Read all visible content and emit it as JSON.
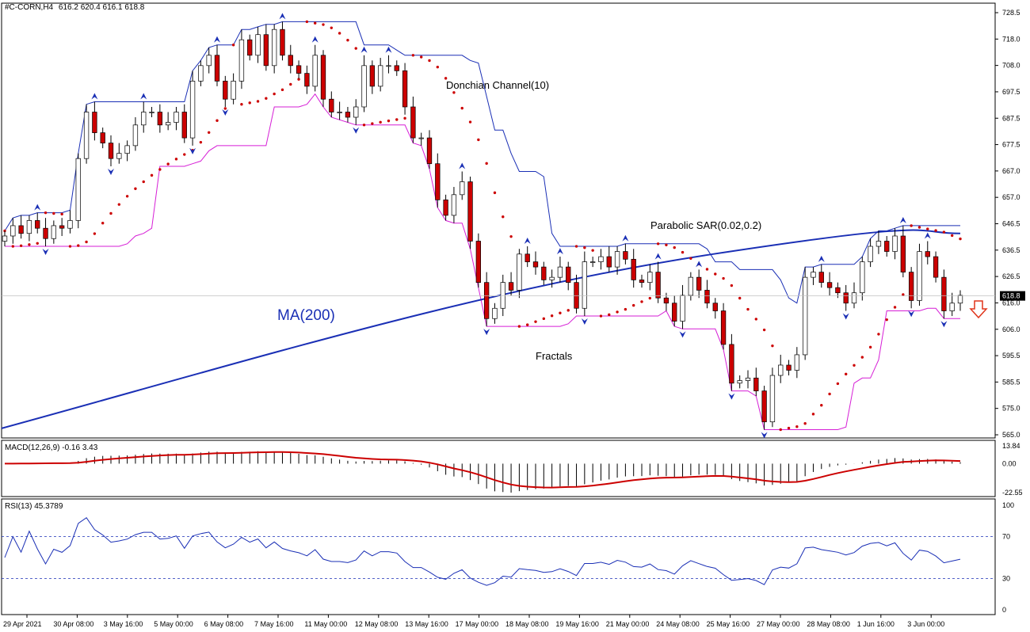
{
  "header": {
    "symbol": "#C-CORN,H4",
    "ohlc": "616.2 620.4 616.1 618.8"
  },
  "annotations": {
    "donchian": "Donchian Channel(10)",
    "parabolic": "Parabolic SAR(0.02,0.2)",
    "ma": "MA(200)",
    "fractals": "Fractals"
  },
  "current_price": "618.8",
  "signal_arrow": "down-arrow-icon",
  "price_ticks": [
    "728.5",
    "718.0",
    "708.0",
    "697.5",
    "687.5",
    "677.5",
    "667.0",
    "657.0",
    "646.5",
    "636.5",
    "626.5",
    "616.0",
    "606.0",
    "595.5",
    "585.5",
    "575.0",
    "565.0"
  ],
  "x_ticks": [
    "29 Apr 2021",
    "30 Apr 08:00",
    "3 May 16:00",
    "5 May 00:00",
    "6 May 08:00",
    "7 May 16:00",
    "11 May 00:00",
    "12 May 08:00",
    "13 May 16:00",
    "17 May 00:00",
    "18 May 08:00",
    "19 May 16:00",
    "21 May 00:00",
    "24 May 08:00",
    "25 May 16:00",
    "27 May 00:00",
    "28 May 08:00",
    "1 Jun 16:00",
    "3 Jun 00:00"
  ],
  "macd": {
    "label": "MACD(12,26,9) -0.16 3.43",
    "ticks": [
      "13.84",
      "0.00",
      "-22.55"
    ]
  },
  "rsi": {
    "label": "RSI(13) 45.3789",
    "ticks": [
      "100",
      "70",
      "30",
      "0"
    ]
  },
  "colors": {
    "bull": "#ffffff",
    "bear": "#cc0000",
    "ma": "#1a2fb5",
    "donchian_upper": "#1a2fb5",
    "donchian_lower": "#d61fd6",
    "sar": "#cc0000",
    "fractal": "#1a2fb5",
    "macd_signal": "#cc0000",
    "rsi": "#1a2fb5"
  },
  "chart_data": {
    "type": "candlestick",
    "timeframe": "H4",
    "ylim": [
      565.0,
      728.5
    ],
    "closes": [
      642,
      646,
      643,
      648,
      645,
      641,
      646,
      645,
      648,
      672,
      690,
      682,
      678,
      672,
      674,
      677,
      685,
      690,
      690,
      685,
      686,
      690,
      680,
      702,
      708,
      712,
      702,
      695,
      702,
      718,
      712,
      720,
      708,
      722,
      712,
      708,
      705,
      700,
      712,
      695,
      690,
      690,
      688,
      692,
      708,
      700,
      708,
      708,
      706,
      692,
      680,
      680,
      670,
      656,
      650,
      658,
      663,
      640,
      624,
      610,
      614,
      624,
      621,
      635,
      632,
      630,
      625,
      626,
      630,
      624,
      614,
      632,
      632,
      634,
      630,
      636,
      633,
      625,
      624,
      628,
      618,
      616,
      609,
      619,
      626,
      621,
      616,
      613,
      600,
      585,
      586,
      587,
      582,
      570,
      588,
      592,
      590,
      596,
      626,
      628,
      624,
      622,
      620,
      616,
      620,
      632,
      638,
      640,
      636,
      642,
      628,
      617,
      636,
      634,
      626,
      613,
      616,
      619
    ],
    "ma200_start": 567.5,
    "ma200_end": 643.0,
    "macd_signal_range": [
      -22.55,
      13.84
    ],
    "rsi_levels": [
      70,
      30
    ]
  }
}
